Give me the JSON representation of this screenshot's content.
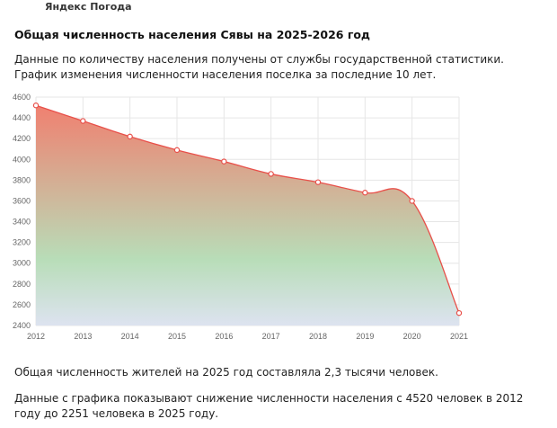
{
  "brand": "Яндекс Погода",
  "title": "Общая численность населения Сявы на 2025-2026 год",
  "intro": [
    "Данные по количеству населения получены от службы государственной статистики.",
    "График изменения численности населения поселка за последние 10 лет."
  ],
  "chart_data": {
    "type": "area",
    "categories": [
      "2012",
      "2013",
      "2014",
      "2015",
      "2016",
      "2017",
      "2018",
      "2019",
      "2020",
      "2021"
    ],
    "values": [
      4520,
      4370,
      4220,
      4090,
      3980,
      3860,
      3780,
      3680,
      3600,
      2520
    ],
    "ylim": [
      2400,
      4600
    ],
    "yticks": [
      2400,
      2600,
      2800,
      3000,
      3200,
      3400,
      3600,
      3800,
      4000,
      4200,
      4400,
      4600
    ],
    "grid": true,
    "line_color": "#e8504a",
    "fill_gradient": [
      "#f08070",
      "#b8ddb8",
      "#dde3f0"
    ]
  },
  "summary": "Общая численность жителей на 2025 год составляла 2,3 тысячи человек.",
  "conclusion": [
    "Данные с графика показывают снижение численности населения с 4520 человек в 2012",
    "году до 2251 человека в 2025 году."
  ]
}
